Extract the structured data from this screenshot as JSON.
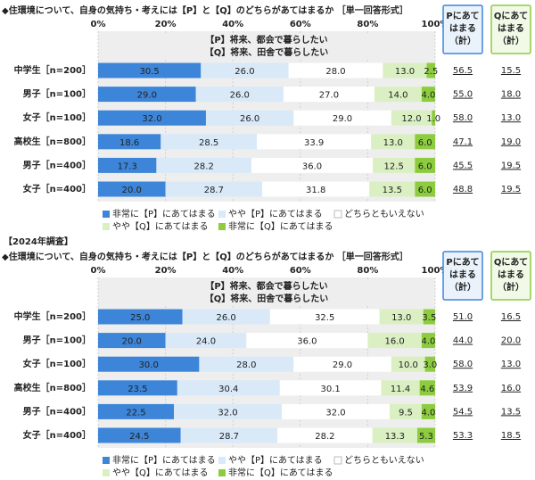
{
  "chart_data": [
    {
      "type": "bar",
      "orientation": "horizontal",
      "stacked": true,
      "grid": true,
      "title": "◆住環境について、自身の気持ち・考えには【P】と【Q】のどちらがあてはまるか ［単一回答形式］",
      "header_lines": [
        "【P】将来、都会で暮らしたい",
        "【Q】将来、田舎で暮らしたい"
      ],
      "categories": [
        "中学生［n=200］",
        "男子［n=100］",
        "女子［n=100］",
        "高校生［n=800］",
        "男子［n=400］",
        "女子［n=400］"
      ],
      "xlim": [
        0,
        100
      ],
      "xticks": [
        {
          "value": 0,
          "label": "0%"
        },
        {
          "value": 20,
          "label": "20%"
        },
        {
          "value": 40,
          "label": "40%"
        },
        {
          "value": 60,
          "label": "60%"
        },
        {
          "value": 80,
          "label": "80%"
        },
        {
          "value": 100,
          "label": "100%"
        }
      ],
      "series": [
        {
          "name": "非常に【P】にあてはまる",
          "color": "#3d85d8",
          "values": [
            30.5,
            29.0,
            32.0,
            18.6,
            17.3,
            20.0
          ],
          "value_labels": [
            "30.5",
            "29.0",
            "32.0",
            "18.6",
            "17.3",
            "20.0"
          ]
        },
        {
          "name": "やや【P】にあてはまる",
          "color": "#d9e9f8",
          "values": [
            26.0,
            26.0,
            26.0,
            28.5,
            28.2,
            28.7
          ],
          "value_labels": [
            "26.0",
            "26.0",
            "26.0",
            "28.5",
            "28.2",
            "28.7"
          ]
        },
        {
          "name": "どちらともいえない",
          "color": "#ffffff",
          "values": [
            28.0,
            27.0,
            29.0,
            33.9,
            36.0,
            31.8
          ],
          "value_labels": [
            "28.0",
            "27.0",
            "29.0",
            "33.9",
            "36.0",
            "31.8"
          ]
        },
        {
          "name": "やや【Q】にあてはまる",
          "color": "#daf0c2",
          "values": [
            13.0,
            14.0,
            12.0,
            13.0,
            12.5,
            13.5
          ],
          "value_labels": [
            "13.0",
            "14.0",
            "12.0",
            "13.0",
            "12.5",
            "13.5"
          ]
        },
        {
          "name": "非常に【Q】にあてはまる",
          "color": "#8dcc3f",
          "values": [
            2.5,
            4.0,
            1.0,
            6.0,
            6.0,
            6.0
          ],
          "value_labels": [
            "2.5",
            "4.0",
            "1.0",
            "6.0",
            "6.0",
            "6.0"
          ]
        }
      ],
      "p_total": {
        "header_lines": [
          "Pにあて",
          "はまる",
          "（計）"
        ],
        "values": [
          56.5,
          55.0,
          58.0,
          47.1,
          45.5,
          48.8
        ],
        "value_labels": [
          "56.5",
          "55.0",
          "58.0",
          "47.1",
          "45.5",
          "48.8"
        ]
      },
      "q_total": {
        "header_lines": [
          "Qにあて",
          "はまる",
          "（計）"
        ],
        "values": [
          15.5,
          18.0,
          13.0,
          19.0,
          19.5,
          19.5
        ],
        "value_labels": [
          "15.5",
          "18.0",
          "13.0",
          "19.0",
          "19.5",
          "19.5"
        ]
      }
    },
    {
      "type": "bar",
      "orientation": "horizontal",
      "stacked": true,
      "grid": true,
      "note": "【2024年調査】",
      "title": "◆住環境について、自身の気持ち・考えには【P】と【Q】のどちらがあてはまるか ［単一回答形式］",
      "header_lines": [
        "【P】将来、都会で暮らしたい",
        "【Q】将来、田舎で暮らしたい"
      ],
      "categories": [
        "中学生［n=200］",
        "男子［n=100］",
        "女子［n=100］",
        "高校生［n=800］",
        "男子［n=400］",
        "女子［n=400］"
      ],
      "xlim": [
        0,
        100
      ],
      "xticks": [
        {
          "value": 0,
          "label": "0%"
        },
        {
          "value": 20,
          "label": "20%"
        },
        {
          "value": 40,
          "label": "40%"
        },
        {
          "value": 60,
          "label": "60%"
        },
        {
          "value": 80,
          "label": "80%"
        },
        {
          "value": 100,
          "label": "100%"
        }
      ],
      "series": [
        {
          "name": "非常に【P】にあてはまる",
          "color": "#3d85d8",
          "values": [
            25.0,
            20.0,
            30.0,
            23.5,
            22.5,
            24.5
          ],
          "value_labels": [
            "25.0",
            "20.0",
            "30.0",
            "23.5",
            "22.5",
            "24.5"
          ]
        },
        {
          "name": "やや【P】にあてはまる",
          "color": "#d9e9f8",
          "values": [
            26.0,
            24.0,
            28.0,
            30.4,
            32.0,
            28.7
          ],
          "value_labels": [
            "26.0",
            "24.0",
            "28.0",
            "30.4",
            "32.0",
            "28.7"
          ]
        },
        {
          "name": "どちらともいえない",
          "color": "#ffffff",
          "values": [
            32.5,
            36.0,
            29.0,
            30.1,
            32.0,
            28.2
          ],
          "value_labels": [
            "32.5",
            "36.0",
            "29.0",
            "30.1",
            "32.0",
            "28.2"
          ]
        },
        {
          "name": "やや【Q】にあてはまる",
          "color": "#daf0c2",
          "values": [
            13.0,
            16.0,
            10.0,
            11.4,
            9.5,
            13.3
          ],
          "value_labels": [
            "13.0",
            "16.0",
            "10.0",
            "11.4",
            "9.5",
            "13.3"
          ]
        },
        {
          "name": "非常に【Q】にあてはまる",
          "color": "#8dcc3f",
          "values": [
            3.5,
            4.0,
            3.0,
            4.6,
            4.0,
            5.3
          ],
          "value_labels": [
            "3.5",
            "4.0",
            "3.0",
            "4.6",
            "4.0",
            "5.3"
          ]
        }
      ],
      "p_total": {
        "header_lines": [
          "Pにあて",
          "はまる",
          "（計）"
        ],
        "values": [
          51.0,
          44.0,
          58.0,
          53.9,
          54.5,
          53.3
        ],
        "value_labels": [
          "51.0",
          "44.0",
          "58.0",
          "53.9",
          "54.5",
          "53.3"
        ]
      },
      "q_total": {
        "header_lines": [
          "Qにあて",
          "はまる",
          "（計）"
        ],
        "values": [
          16.5,
          20.0,
          13.0,
          16.0,
          13.5,
          18.5
        ],
        "value_labels": [
          "16.5",
          "20.0",
          "13.0",
          "16.0",
          "13.5",
          "18.5"
        ]
      }
    }
  ]
}
